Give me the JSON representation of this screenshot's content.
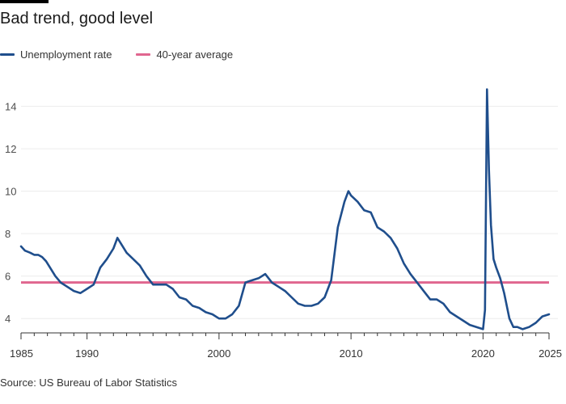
{
  "header": {
    "title": "Bad trend, good level"
  },
  "source": "Source: US Bureau of Labor Statistics",
  "colors": {
    "series": "#1f4e8c",
    "average": "#e0668f",
    "grid": "#ececec",
    "axis": "#333333"
  },
  "chart_data": {
    "type": "line",
    "title": "Bad trend, good level",
    "xlabel": "",
    "ylabel": "",
    "xlim": [
      1985,
      2025
    ],
    "ylim": [
      3.4,
      15.2
    ],
    "yticks": [
      4,
      6,
      8,
      10,
      12,
      14
    ],
    "xticks": [
      1985,
      1990,
      2000,
      2010,
      2020,
      2025
    ],
    "grid": "horizontal",
    "legend": "top-left",
    "series": [
      {
        "name": "Unemployment rate",
        "x": [
          1985.0,
          1985.3,
          1985.7,
          1986.0,
          1986.3,
          1986.6,
          1986.9,
          1987.2,
          1987.6,
          1988.0,
          1988.5,
          1989.0,
          1989.5,
          1990.0,
          1990.5,
          1991.0,
          1991.5,
          1992.0,
          1992.3,
          1992.6,
          1993.0,
          1993.5,
          1994.0,
          1994.5,
          1995.0,
          1995.5,
          1996.0,
          1996.5,
          1997.0,
          1997.5,
          1998.0,
          1998.5,
          1999.0,
          1999.5,
          2000.0,
          2000.5,
          2001.0,
          2001.5,
          2002.0,
          2002.5,
          2003.0,
          2003.5,
          2004.0,
          2004.5,
          2005.0,
          2005.5,
          2006.0,
          2006.5,
          2007.0,
          2007.5,
          2008.0,
          2008.5,
          2009.0,
          2009.5,
          2009.8,
          2010.0,
          2010.5,
          2011.0,
          2011.5,
          2012.0,
          2012.5,
          2013.0,
          2013.5,
          2014.0,
          2014.5,
          2015.0,
          2015.5,
          2016.0,
          2016.5,
          2017.0,
          2017.5,
          2018.0,
          2018.5,
          2019.0,
          2019.5,
          2020.0,
          2020.15,
          2020.3,
          2020.45,
          2020.6,
          2020.8,
          2021.0,
          2021.3,
          2021.6,
          2022.0,
          2022.3,
          2022.6,
          2023.0,
          2023.5,
          2024.0,
          2024.5,
          2025.0
        ],
        "values": [
          7.4,
          7.2,
          7.1,
          7.0,
          7.0,
          6.9,
          6.7,
          6.4,
          6.0,
          5.7,
          5.5,
          5.3,
          5.2,
          5.4,
          5.6,
          6.4,
          6.8,
          7.3,
          7.8,
          7.5,
          7.1,
          6.8,
          6.5,
          6.0,
          5.6,
          5.6,
          5.6,
          5.4,
          5.0,
          4.9,
          4.6,
          4.5,
          4.3,
          4.2,
          4.0,
          4.0,
          4.2,
          4.6,
          5.7,
          5.8,
          5.9,
          6.1,
          5.7,
          5.5,
          5.3,
          5.0,
          4.7,
          4.6,
          4.6,
          4.7,
          5.0,
          5.8,
          8.3,
          9.5,
          10.0,
          9.8,
          9.5,
          9.1,
          9.0,
          8.3,
          8.1,
          7.8,
          7.3,
          6.6,
          6.1,
          5.7,
          5.3,
          4.9,
          4.9,
          4.7,
          4.3,
          4.1,
          3.9,
          3.7,
          3.6,
          3.5,
          4.4,
          14.8,
          11.0,
          8.4,
          6.8,
          6.4,
          5.9,
          5.2,
          4.0,
          3.6,
          3.6,
          3.5,
          3.6,
          3.8,
          4.1,
          4.2
        ]
      },
      {
        "name": "40-year average",
        "x": [
          1985,
          2025
        ],
        "values": [
          5.7,
          5.7
        ]
      }
    ]
  }
}
